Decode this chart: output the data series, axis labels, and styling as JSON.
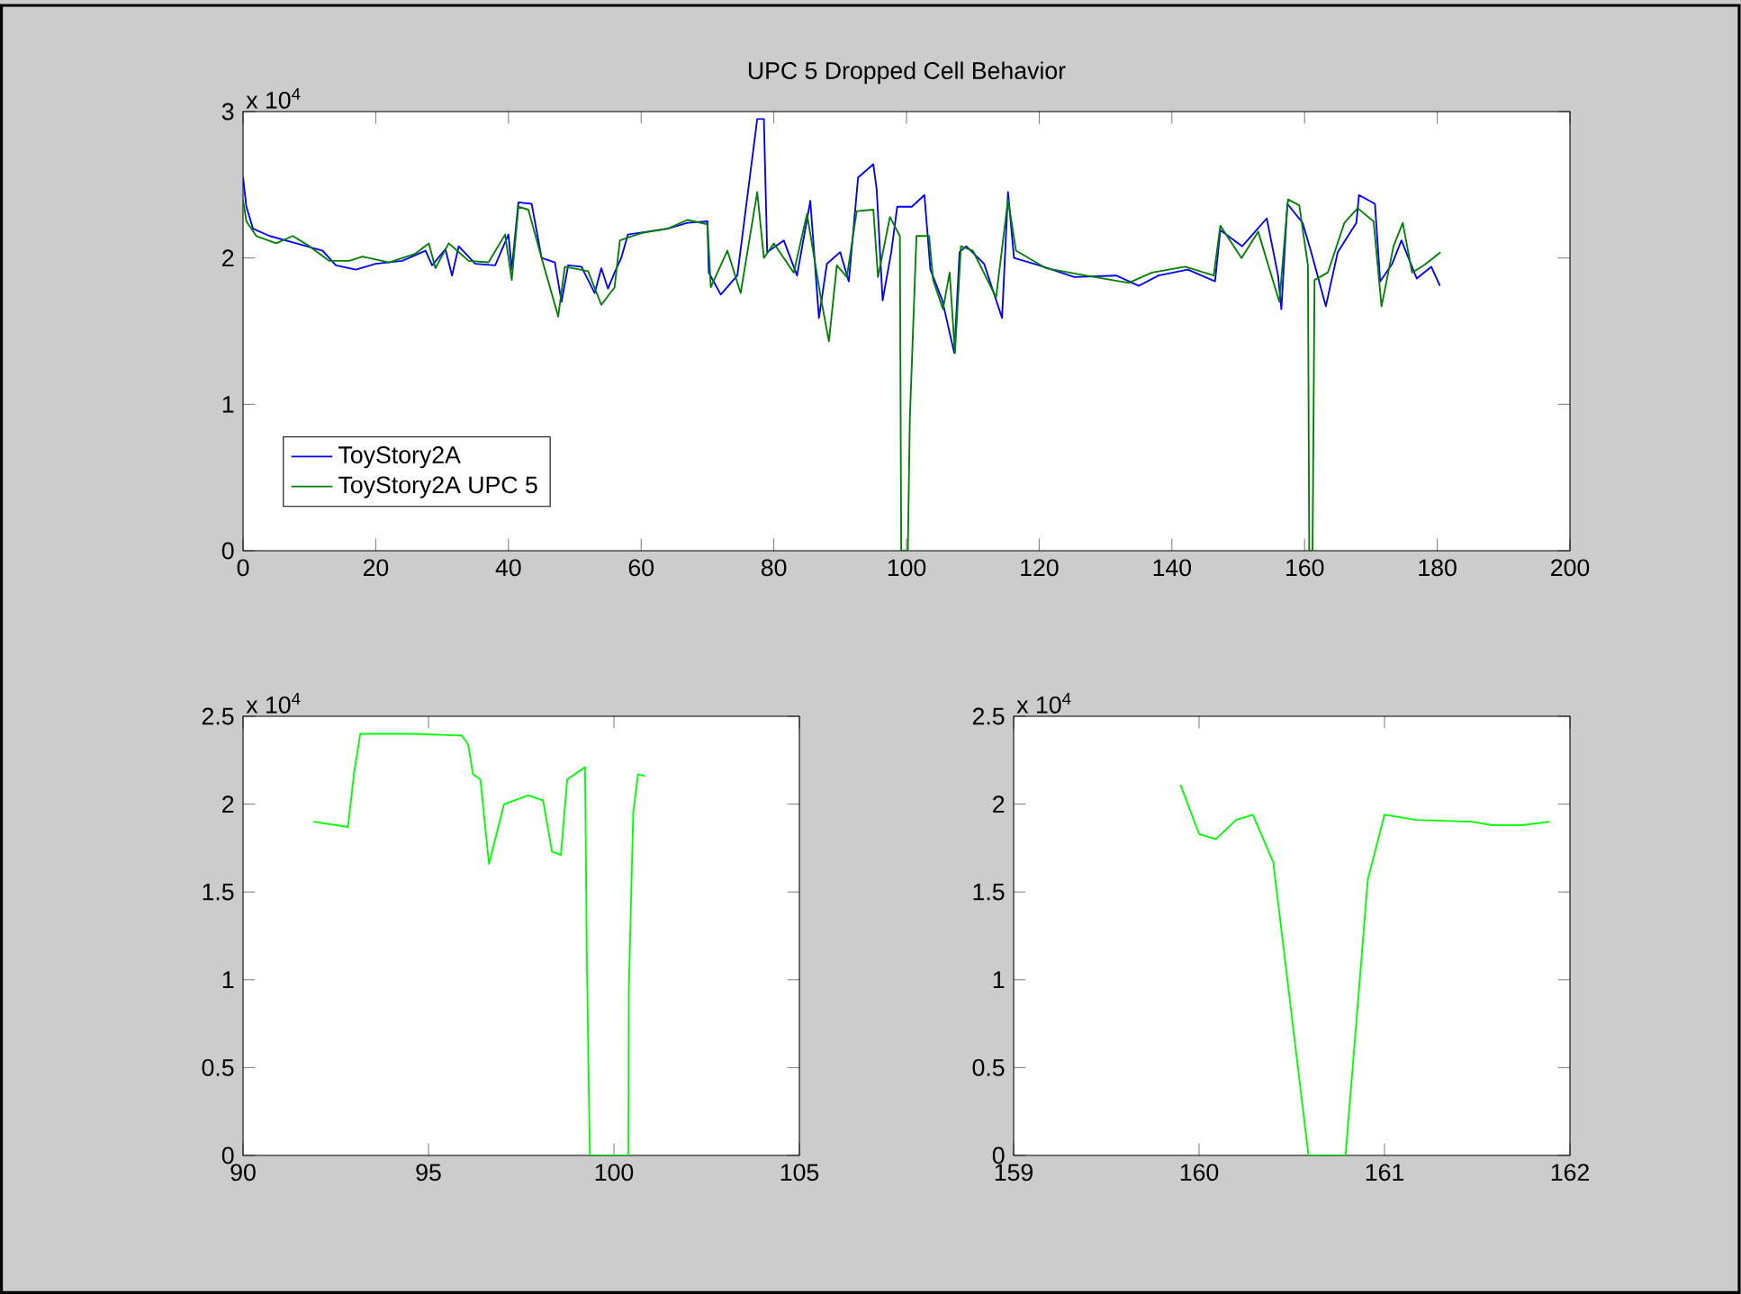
{
  "chart_data": [
    {
      "type": "line",
      "title": "UPC 5 Dropped Cell Behavior",
      "annotations": [
        "x 10$^{4}$"
      ],
      "legend": "bottom left",
      "xlim": [
        0,
        200
      ],
      "xticks": [
        0,
        20,
        40,
        60,
        80,
        100,
        120,
        140,
        160,
        180,
        200
      ],
      "ylim": [
        0,
        3
      ],
      "yticks": [
        0,
        1,
        2,
        3
      ],
      "series": [
        {
          "name": "ToyStory2A",
          "color": "#0000ff",
          "x": [
            0,
            0.5,
            1.5,
            4,
            8,
            12,
            14,
            17,
            20,
            24,
            27.5,
            28.5,
            30.5,
            31.5,
            32.5,
            35,
            38,
            40,
            40.5,
            41.5,
            43.5,
            45,
            47,
            48,
            49,
            51,
            53,
            54,
            55,
            56,
            57,
            58,
            61,
            64,
            67,
            70,
            70.2,
            72,
            74.5,
            77.5,
            78.5,
            79,
            81.5,
            83.5,
            85.5,
            86.8,
            88,
            90,
            91.3,
            92.7,
            95,
            95.5,
            96.4,
            97.7,
            98.6,
            100.8,
            102.7,
            103.6,
            105.4,
            107.2,
            108,
            109,
            111.7,
            114.4,
            115.3,
            116.2,
            120,
            125.3,
            131.6,
            135,
            138,
            142.4,
            146.5,
            147.3,
            150.6,
            154.3,
            156,
            156.5,
            157.4,
            159.7,
            161,
            163.2,
            165,
            167.8,
            168.2,
            170.6,
            171.4,
            173.2,
            174.6,
            176.9,
            179.1,
            180.4
          ],
          "values": [
            2.55,
            2.35,
            2.2,
            2.15,
            2.1,
            2.05,
            1.95,
            1.92,
            1.96,
            1.98,
            2.05,
            1.95,
            2.06,
            1.88,
            2.08,
            1.96,
            1.95,
            2.16,
            1.92,
            2.38,
            2.37,
            2.0,
            1.97,
            1.7,
            1.95,
            1.94,
            1.76,
            1.93,
            1.79,
            1.9,
            2.0,
            2.16,
            2.18,
            2.2,
            2.24,
            2.25,
            1.9,
            1.75,
            1.88,
            2.95,
            2.95,
            2.04,
            2.12,
            1.88,
            2.39,
            1.59,
            1.96,
            2.04,
            1.84,
            2.55,
            2.64,
            2.47,
            1.71,
            2.04,
            2.35,
            2.35,
            2.43,
            1.92,
            1.71,
            1.35,
            2.04,
            2.08,
            1.96,
            1.59,
            2.45,
            2.0,
            1.95,
            1.87,
            1.88,
            1.81,
            1.88,
            1.92,
            1.84,
            2.19,
            2.08,
            2.27,
            1.88,
            1.65,
            2.37,
            2.24,
            2.04,
            1.67,
            2.04,
            2.24,
            2.43,
            2.37,
            1.84,
            1.96,
            2.12,
            1.86,
            1.94,
            1.81
          ]
        },
        {
          "name": "ToyStory2A UPC 5",
          "color": "#008000",
          "x": [
            0,
            0.5,
            2,
            5,
            7.5,
            10,
            13,
            16,
            18,
            22,
            26,
            28,
            29,
            31,
            34,
            37,
            39.5,
            40.5,
            41.5,
            43,
            45,
            47.5,
            48.5,
            52,
            54,
            56,
            56.8,
            60,
            64,
            67,
            70,
            70.5,
            73,
            75,
            77.5,
            78.5,
            80,
            83,
            85,
            87,
            88.3,
            89.5,
            91,
            92.5,
            95,
            95.7,
            97.5,
            99,
            99.2,
            100.2,
            100.5,
            101.5,
            103.4,
            104,
            105.5,
            106.5,
            107.3,
            108.2,
            110,
            113.5,
            115.3,
            116.5,
            121,
            127,
            133.5,
            137,
            142,
            146.3,
            147.3,
            150.5,
            153,
            156.2,
            157.5,
            159.2,
            160.5,
            160.7,
            161.2,
            161.5,
            163.5,
            166,
            168,
            170.4,
            171.6,
            173.4,
            174.8,
            176.2,
            178,
            180.5
          ],
          "values": [
            2.4,
            2.25,
            2.15,
            2.1,
            2.15,
            2.08,
            1.98,
            1.98,
            2.01,
            1.97,
            2.03,
            2.1,
            1.93,
            2.1,
            1.98,
            1.97,
            2.16,
            1.85,
            2.35,
            2.33,
            2.0,
            1.6,
            1.94,
            1.91,
            1.68,
            1.8,
            2.12,
            2.17,
            2.2,
            2.26,
            2.23,
            1.8,
            2.05,
            1.76,
            2.45,
            2.0,
            2.1,
            1.9,
            2.3,
            1.75,
            1.43,
            1.95,
            1.87,
            2.32,
            2.33,
            1.87,
            2.28,
            2.15,
            0,
            0,
            0.9,
            2.15,
            2.15,
            1.85,
            1.65,
            1.9,
            1.35,
            2.08,
            2.05,
            1.73,
            2.4,
            2.05,
            1.93,
            1.88,
            1.83,
            1.9,
            1.94,
            1.88,
            2.22,
            2.0,
            2.18,
            1.7,
            2.4,
            2.36,
            1.95,
            0,
            0,
            1.85,
            1.9,
            2.24,
            2.34,
            2.25,
            1.67,
            2.08,
            2.24,
            1.9,
            1.95,
            2.04
          ]
        }
      ]
    },
    {
      "type": "line",
      "annotations": [
        "x 10$^{4}$"
      ],
      "xlim": [
        90,
        105
      ],
      "xticks": [
        90,
        95,
        100,
        105
      ],
      "ylim": [
        0,
        2.5
      ],
      "yticks": [
        0,
        0.5,
        1,
        1.5,
        2,
        2.5
      ],
      "series": [
        {
          "color": "#00ff00",
          "x": [
            91.9,
            92.83,
            92.99,
            93.16,
            94.6,
            95.9,
            96.07,
            96.2,
            96.4,
            96.63,
            97.04,
            97.69,
            98.09,
            98.33,
            98.57,
            98.74,
            99.22,
            99.27,
            99.35,
            100.39,
            100.4,
            100.52,
            100.65,
            100.84
          ],
          "values": [
            1.9,
            1.87,
            2.17,
            2.4,
            2.4,
            2.39,
            2.34,
            2.17,
            2.14,
            1.66,
            2.0,
            2.05,
            2.02,
            1.73,
            1.71,
            2.14,
            2.21,
            1.11,
            0,
            0,
            0.93,
            1.95,
            2.17,
            2.16
          ]
        }
      ]
    },
    {
      "type": "line",
      "annotations": [
        "x 10$^{4}$"
      ],
      "xlim": [
        159,
        162
      ],
      "xticks": [
        159,
        160,
        161,
        162
      ],
      "ylim": [
        0,
        2.5
      ],
      "yticks": [
        0,
        0.5,
        1,
        1.5,
        2,
        2.5
      ],
      "series": [
        {
          "color": "#00ff00",
          "x": [
            159.9,
            160.0,
            160.09,
            160.2,
            160.29,
            160.4,
            160.59,
            160.79,
            160.91,
            161.0,
            161.17,
            161.47,
            161.58,
            161.74,
            161.89
          ],
          "values": [
            2.11,
            1.83,
            1.8,
            1.91,
            1.94,
            1.67,
            0,
            0,
            1.57,
            1.94,
            1.91,
            1.9,
            1.88,
            1.88,
            1.9
          ]
        }
      ]
    }
  ]
}
